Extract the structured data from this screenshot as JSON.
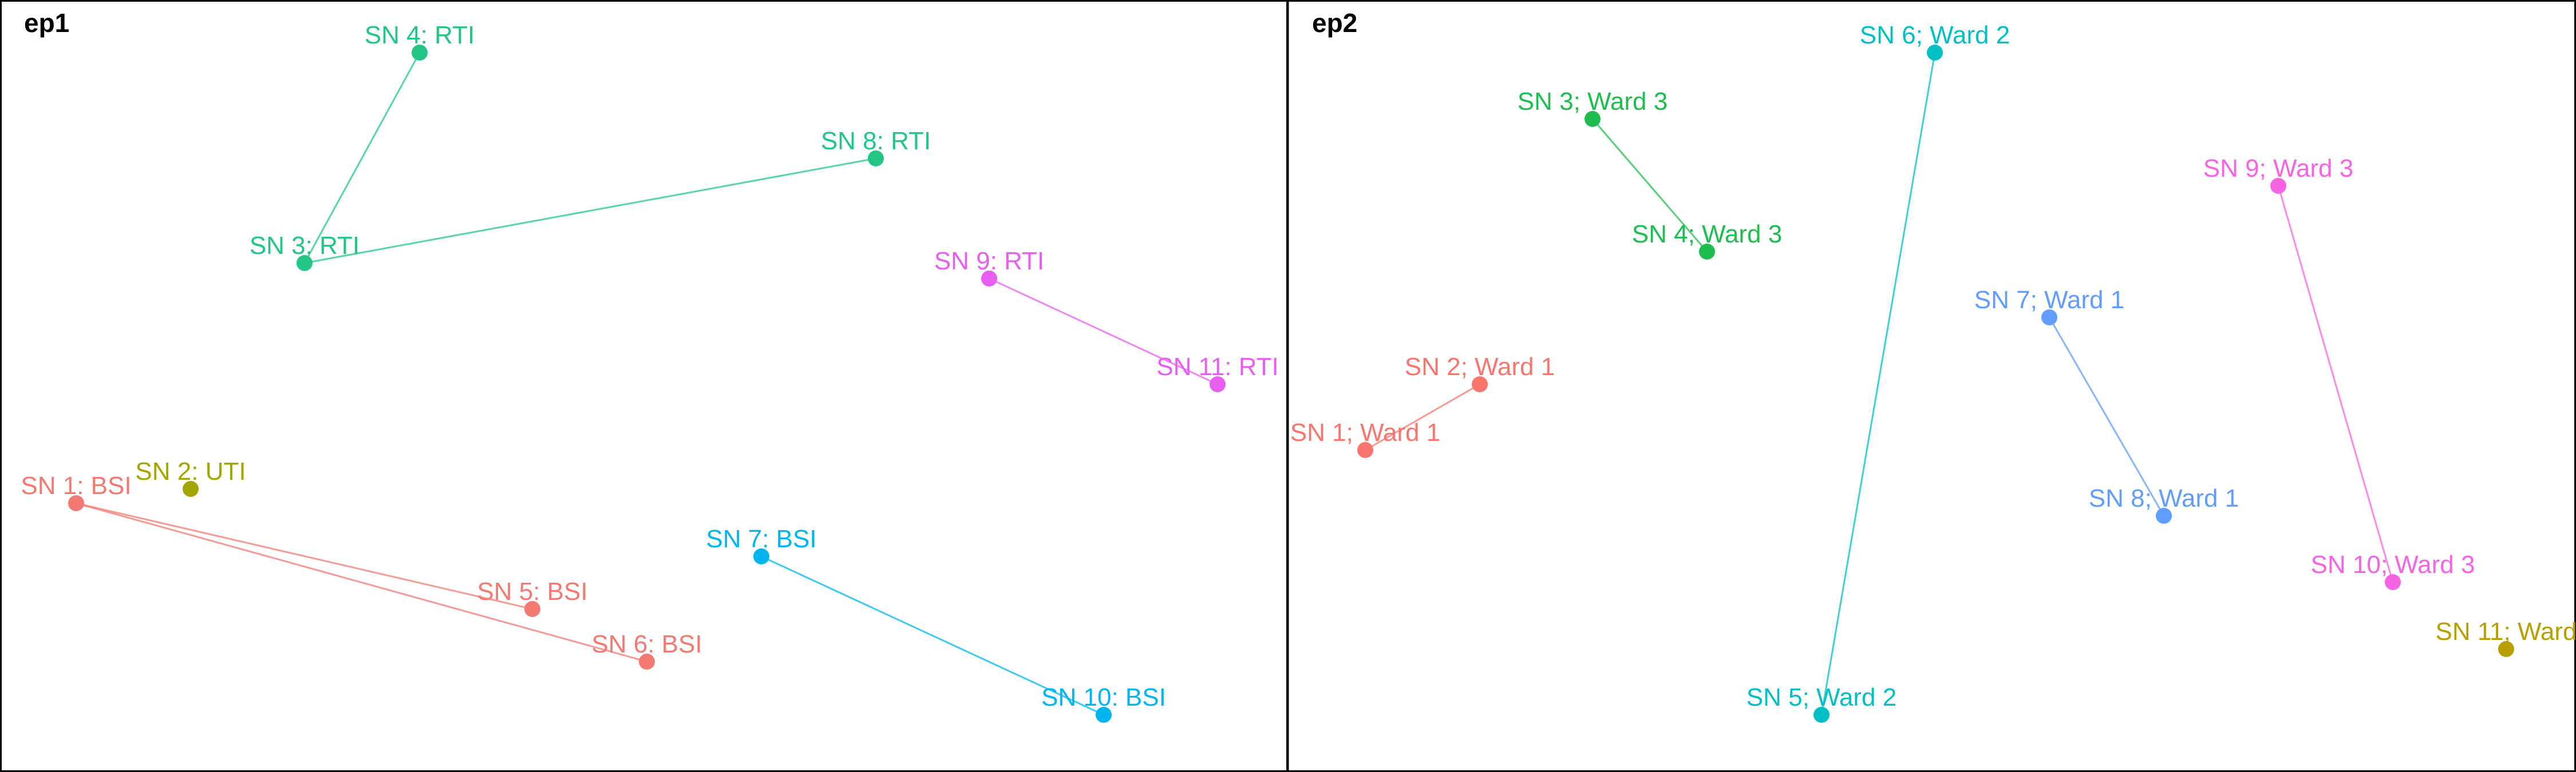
{
  "panels": [
    {
      "id": "ep1",
      "title": "ep1",
      "nodes": [
        {
          "id": "sn4",
          "label": "SN 4: RTI",
          "color": "#22c584"
        },
        {
          "id": "sn8",
          "label": "SN 8: RTI",
          "color": "#22c584"
        },
        {
          "id": "sn3",
          "label": "SN 3: RTI",
          "color": "#22c584"
        },
        {
          "id": "sn9",
          "label": "SN 9: RTI",
          "color": "#e65ff0"
        },
        {
          "id": "sn11",
          "label": "SN 11: RTI",
          "color": "#e65ff0"
        },
        {
          "id": "sn1",
          "label": "SN 1: BSI",
          "color": "#f27a72"
        },
        {
          "id": "sn2",
          "label": "SN 2: UTI",
          "color": "#a3a500"
        },
        {
          "id": "sn5",
          "label": "SN 5: BSI",
          "color": "#f27a72"
        },
        {
          "id": "sn6",
          "label": "SN 6: BSI",
          "color": "#f27a72"
        },
        {
          "id": "sn7",
          "label": "SN 7: BSI",
          "color": "#00b5ee"
        },
        {
          "id": "sn10",
          "label": "SN 10: BSI",
          "color": "#00b5ee"
        }
      ],
      "edges": [
        {
          "from": "sn4",
          "to": "sn3",
          "color": "#22c584"
        },
        {
          "from": "sn3",
          "to": "sn8",
          "color": "#22c584"
        },
        {
          "from": "sn9",
          "to": "sn11",
          "color": "#e65ff0"
        },
        {
          "from": "sn1",
          "to": "sn5",
          "color": "#f27a72"
        },
        {
          "from": "sn1",
          "to": "sn6",
          "color": "#f27a72"
        },
        {
          "from": "sn7",
          "to": "sn10",
          "color": "#00b5ee"
        }
      ]
    },
    {
      "id": "ep2",
      "title": "ep2",
      "nodes": [
        {
          "id": "sn6",
          "label": "SN 6; Ward 2",
          "color": "#00bfc4"
        },
        {
          "id": "sn3",
          "label": "SN 3; Ward 3",
          "color": "#1fbd4f"
        },
        {
          "id": "sn4",
          "label": "SN 4; Ward 3",
          "color": "#1fbd4f"
        },
        {
          "id": "sn9",
          "label": "SN 9; Ward 3",
          "color": "#f564e3"
        },
        {
          "id": "sn7",
          "label": "SN 7; Ward 1",
          "color": "#619cff"
        },
        {
          "id": "sn2",
          "label": "SN 2; Ward 1",
          "color": "#f8766d"
        },
        {
          "id": "sn1",
          "label": "SN 1; Ward 1",
          "color": "#f8766d"
        },
        {
          "id": "sn8",
          "label": "SN 8; Ward 1",
          "color": "#619cff"
        },
        {
          "id": "sn10",
          "label": "SN 10; Ward 3",
          "color": "#f564e3"
        },
        {
          "id": "sn11",
          "label": "SN 11; Ward",
          "color": "#b79f00"
        },
        {
          "id": "sn5",
          "label": "SN 5; Ward 2",
          "color": "#00bfc4"
        }
      ],
      "edges": [
        {
          "from": "sn3",
          "to": "sn4",
          "color": "#1fbd4f"
        },
        {
          "from": "sn6",
          "to": "sn5",
          "color": "#00bfc4"
        },
        {
          "from": "sn9",
          "to": "sn10",
          "color": "#f564e3"
        },
        {
          "from": "sn7",
          "to": "sn8",
          "color": "#619cff"
        },
        {
          "from": "sn2",
          "to": "sn1",
          "color": "#f8766d"
        }
      ]
    }
  ]
}
